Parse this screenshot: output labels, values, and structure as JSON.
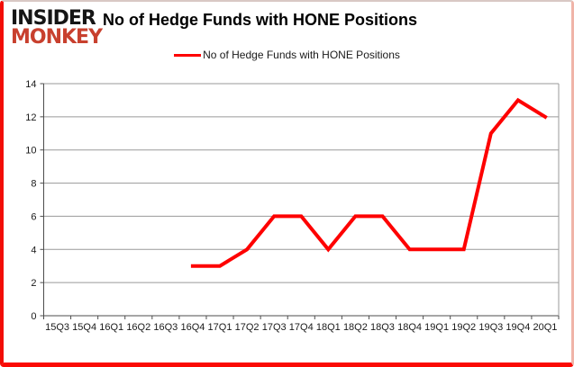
{
  "logo": {
    "line1": "INSIDER",
    "line2": "MONKEY"
  },
  "title": "No of Hedge Funds with HONE Positions",
  "legend": {
    "label": "No of Hedge Funds with HONE Positions"
  },
  "colors": {
    "line": "#fe0000",
    "logo_black": "#151515",
    "logo_red": "#c8402e",
    "grid": "#9a9a9a",
    "axis": "#4d4d4d",
    "tick_label": "#1a1a1a",
    "border_top": "#d9c8c4",
    "border_right": "#f0b4a8",
    "border_bottom": "#fb0a04",
    "border_left": "#f20d05"
  },
  "chart_data": {
    "type": "line",
    "title": "No of Hedge Funds with HONE Positions",
    "categories": [
      "15Q3",
      "15Q4",
      "16Q1",
      "16Q2",
      "16Q3",
      "16Q4",
      "17Q1",
      "17Q2",
      "17Q3",
      "17Q4",
      "18Q1",
      "18Q2",
      "18Q3",
      "18Q4",
      "19Q1",
      "19Q2",
      "19Q3",
      "19Q4",
      "20Q1"
    ],
    "series": [
      {
        "name": "No of Hedge Funds with HONE Positions",
        "color": "#fe0000",
        "values": [
          null,
          null,
          null,
          null,
          null,
          3,
          3,
          4,
          6,
          6,
          4,
          6,
          6,
          4,
          4,
          4,
          11,
          13,
          12
        ]
      }
    ],
    "xlabel": "",
    "ylabel": "",
    "ylim": [
      0,
      14
    ],
    "ytick_step": 2,
    "grid": true,
    "legend_position": "top-center"
  }
}
